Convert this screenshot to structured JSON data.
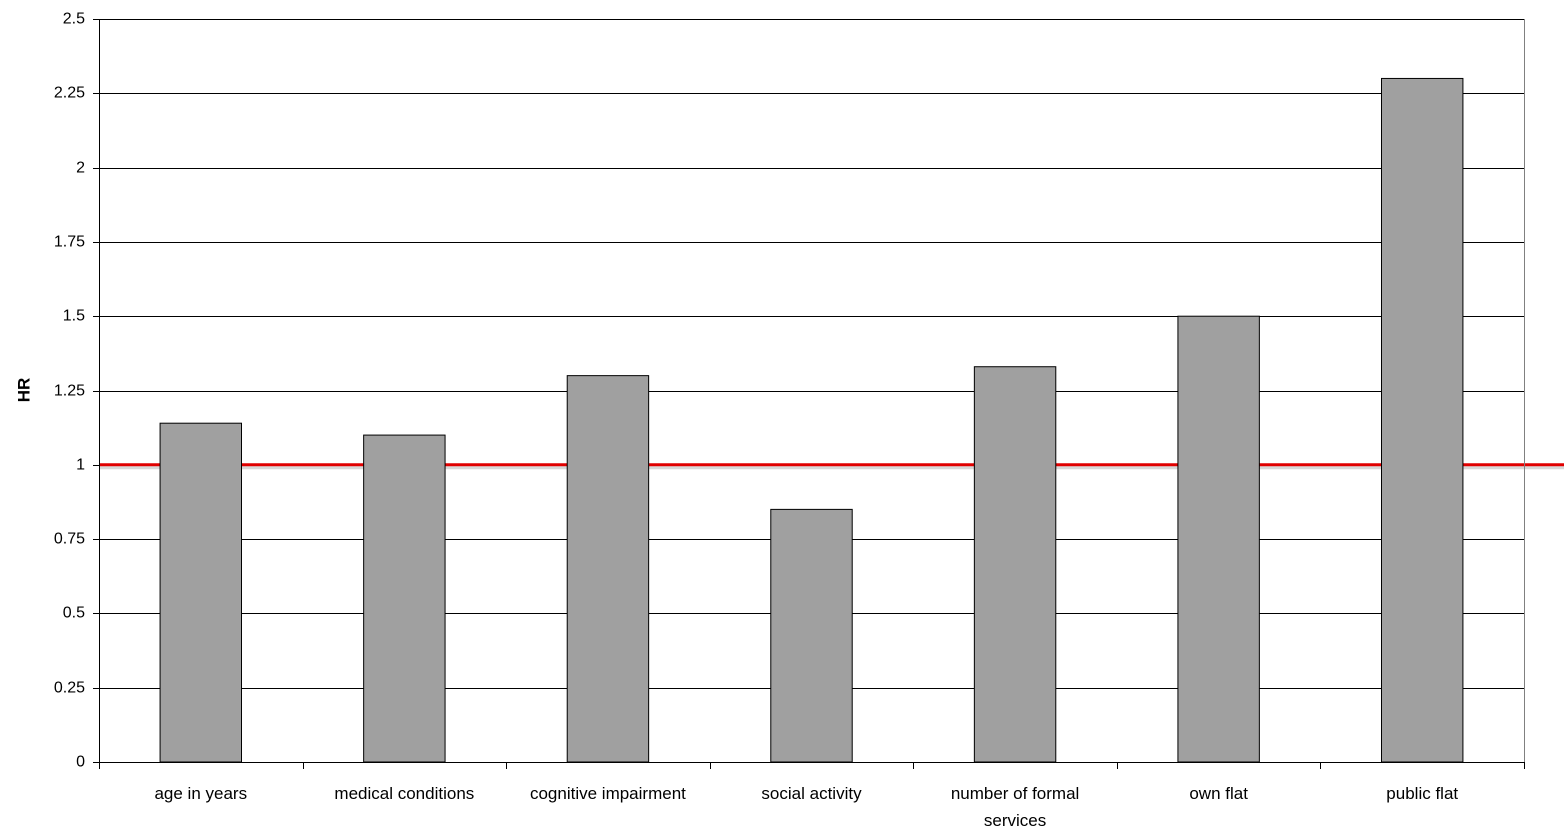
{
  "chart_data": {
    "type": "bar",
    "title": "",
    "xlabel": "",
    "ylabel": "HR",
    "ylim": [
      0,
      2.5
    ],
    "yticks": [
      "0",
      "0.25",
      "0.5",
      "0.75",
      "1",
      "1.25",
      "1.5",
      "1.75",
      "2",
      "2.25",
      "2.5"
    ],
    "grid": true,
    "categories": [
      [
        "age in years"
      ],
      [
        "medical conditions"
      ],
      [
        "cognitive impairment"
      ],
      [
        "social activity"
      ],
      [
        "number of formal",
        "services"
      ],
      [
        "own flat"
      ],
      [
        "public flat"
      ]
    ],
    "values": [
      1.14,
      1.1,
      1.3,
      0.85,
      1.33,
      1.5,
      2.3
    ],
    "reference_line": {
      "value": 1,
      "color": "#e00000"
    },
    "colors": {
      "bar": "#a0a0a0",
      "bar_stroke": "#000000",
      "grid": "#000000"
    }
  }
}
